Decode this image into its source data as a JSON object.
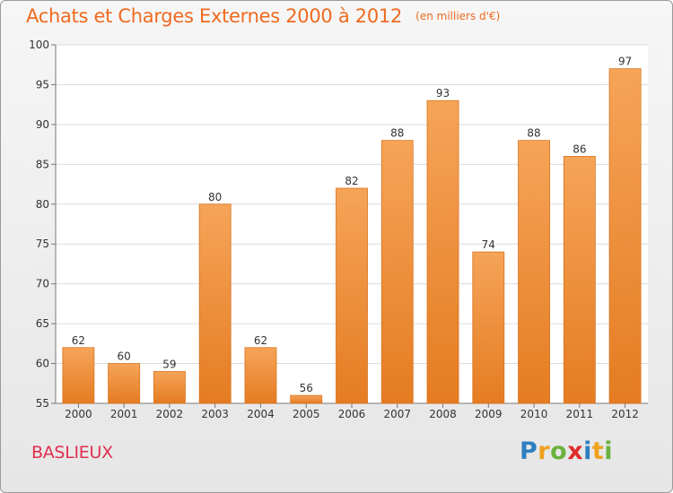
{
  "header": {
    "title": "Achats et Charges Externes 2000 à 2012",
    "unit": "(en milliers d'€)"
  },
  "subtitle": "BASLIEUX",
  "logo": {
    "text": "Proxiti",
    "letters": [
      {
        "char": "P",
        "color": "#2e7fc2"
      },
      {
        "char": "r",
        "color": "#f0a11e"
      },
      {
        "char": "o",
        "color": "#6ab23e"
      },
      {
        "char": "x",
        "color": "#e02c2c"
      },
      {
        "char": "i",
        "color": "#2e7fc2"
      },
      {
        "char": "t",
        "color": "#f0a11e"
      },
      {
        "char": "i",
        "color": "#6ab23e"
      }
    ]
  },
  "colors": {
    "accent": "#ef6a1f",
    "bar_light": "#f5a458",
    "bar_dark": "#e57c22",
    "subtitle": "#e0304f"
  },
  "chart_data": {
    "type": "bar",
    "categories": [
      "2000",
      "2001",
      "2002",
      "2003",
      "2004",
      "2005",
      "2006",
      "2007",
      "2008",
      "2009",
      "2010",
      "2011",
      "2012"
    ],
    "values": [
      62,
      60,
      59,
      80,
      62,
      56,
      82,
      88,
      93,
      74,
      88,
      86,
      97
    ],
    "value_labels": [
      "62",
      "60",
      "59",
      "80",
      "62",
      "56",
      "82",
      "88",
      "93",
      "74",
      "88",
      "86",
      "97"
    ],
    "title": "Achats et Charges Externes 2000 à 2012",
    "xlabel": "",
    "ylabel": "",
    "ylim": [
      55,
      100
    ],
    "yticks": [
      "55",
      "60",
      "65",
      "70",
      "75",
      "80",
      "85",
      "90",
      "95",
      "100"
    ],
    "grid": true,
    "legend": "none"
  }
}
